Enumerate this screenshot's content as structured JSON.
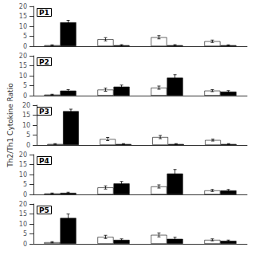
{
  "chart_data": [
    {
      "type": "bar",
      "title": "P1",
      "categories": [
        null,
        null,
        null,
        null
      ],
      "series": [
        {
          "color": "#ffffff",
          "values": [
            0.5,
            3.5,
            4.5,
            2.5
          ],
          "errors": [
            0.2,
            0.8,
            0.8,
            0.6
          ]
        },
        {
          "color": "#000000",
          "values": [
            12.0,
            0.5,
            0.5,
            0.5
          ],
          "errors": [
            1.0,
            0.3,
            0.3,
            0.2
          ]
        }
      ],
      "ylim": [
        0,
        20
      ],
      "yticks": [
        0,
        5,
        10,
        15,
        20
      ],
      "grid": false,
      "tick_labels": "y"
    },
    {
      "type": "bar",
      "title": "P2",
      "categories": [
        null,
        null,
        null,
        null
      ],
      "series": [
        {
          "color": "#ffffff",
          "values": [
            0.5,
            3.0,
            4.0,
            2.5
          ],
          "errors": [
            0.2,
            0.8,
            0.8,
            0.5
          ]
        },
        {
          "color": "#000000",
          "values": [
            2.5,
            4.5,
            9.0,
            2.0
          ],
          "errors": [
            0.5,
            0.8,
            1.5,
            0.5
          ]
        }
      ],
      "ylim": [
        0,
        20
      ],
      "yticks": [
        0,
        5,
        10,
        15,
        20
      ],
      "grid": false,
      "tick_labels": "y"
    },
    {
      "type": "bar",
      "title": "P3",
      "ylabel": "Th2/Th1 Cytokine Ratio",
      "categories": [
        null,
        null,
        null,
        null
      ],
      "series": [
        {
          "color": "#ffffff",
          "values": [
            0.5,
            3.0,
            4.0,
            2.5
          ],
          "errors": [
            0.2,
            0.8,
            0.8,
            0.5
          ]
        },
        {
          "color": "#000000",
          "values": [
            17.0,
            0.5,
            0.5,
            0.5
          ],
          "errors": [
            1.0,
            0.2,
            0.2,
            0.2
          ]
        }
      ],
      "ylim": [
        0,
        20
      ],
      "yticks": [
        0,
        5,
        10,
        15,
        20
      ],
      "grid": false,
      "tick_labels": "y"
    },
    {
      "type": "bar",
      "title": "P4",
      "categories": [
        null,
        null,
        null,
        null
      ],
      "series": [
        {
          "color": "#ffffff",
          "values": [
            0.5,
            3.5,
            4.0,
            2.0
          ],
          "errors": [
            0.2,
            0.8,
            0.8,
            0.5
          ]
        },
        {
          "color": "#000000",
          "values": [
            0.8,
            5.5,
            10.5,
            2.0
          ],
          "errors": [
            0.3,
            1.0,
            2.0,
            0.5
          ]
        }
      ],
      "ylim": [
        0,
        20
      ],
      "yticks": [
        0,
        5,
        10,
        15,
        20
      ],
      "grid": false,
      "tick_labels": "y"
    },
    {
      "type": "bar",
      "title": "P5",
      "categories": [
        null,
        null,
        null,
        null
      ],
      "series": [
        {
          "color": "#ffffff",
          "values": [
            0.8,
            3.5,
            4.5,
            2.0
          ],
          "errors": [
            0.3,
            0.8,
            1.0,
            0.5
          ]
        },
        {
          "color": "#000000",
          "values": [
            13.0,
            2.0,
            2.5,
            1.5
          ],
          "errors": [
            2.0,
            0.5,
            0.8,
            0.4
          ]
        }
      ],
      "ylim": [
        0,
        20
      ],
      "yticks": [
        0,
        5,
        10,
        15,
        20
      ],
      "grid": false,
      "tick_labels": "y"
    }
  ]
}
